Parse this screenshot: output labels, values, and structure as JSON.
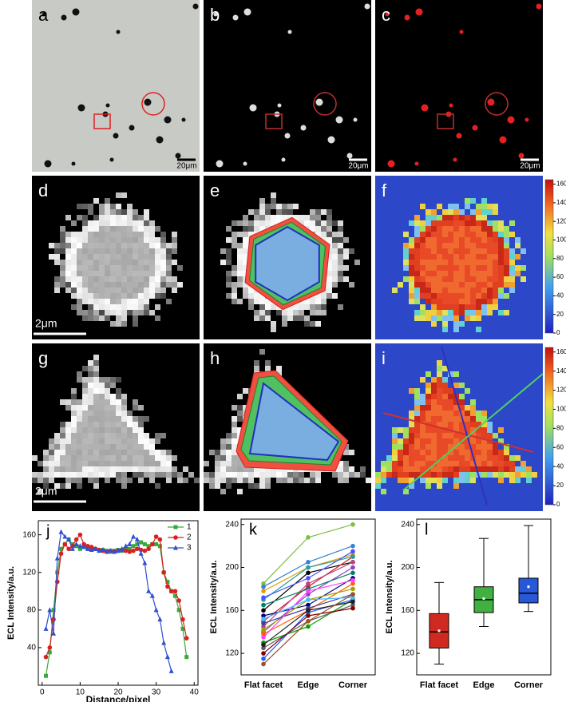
{
  "panels": {
    "a": {
      "label": "a",
      "scale_bar": "20μm"
    },
    "b": {
      "label": "b",
      "scale_bar": "20μm"
    },
    "c": {
      "label": "c",
      "scale_bar": "20μm"
    },
    "d": {
      "label": "d",
      "scale_bar": "2μm"
    },
    "e": {
      "label": "e"
    },
    "f": {
      "label": "f",
      "colorbar": {
        "ticks": [
          0,
          20,
          40,
          60,
          80,
          100,
          120,
          140,
          160
        ]
      }
    },
    "g": {
      "label": "g",
      "scale_bar": "2μm"
    },
    "h": {
      "label": "h"
    },
    "i": {
      "label": "i",
      "colorbar": {
        "ticks": [
          0,
          20,
          40,
          60,
          80,
          100,
          120,
          140,
          160
        ]
      }
    }
  },
  "chart_data": [
    {
      "type": "line",
      "panel_label": "j",
      "x_label": "Distance/pixel",
      "y_label": "ECL Intensity/a.u.",
      "x": [
        1,
        2,
        3,
        4,
        5,
        6,
        7,
        8,
        9,
        10,
        11,
        12,
        13,
        14,
        15,
        16,
        17,
        18,
        19,
        20,
        21,
        22,
        23,
        24,
        25,
        26,
        27,
        28,
        29,
        30,
        31,
        32,
        33,
        34,
        35,
        36,
        37,
        38
      ],
      "series": [
        {
          "name": "1",
          "color": "#3aa83a",
          "marker": "square",
          "values": [
            10,
            35,
            80,
            120,
            145,
            150,
            155,
            150,
            148,
            145,
            147,
            145,
            144,
            145,
            143,
            144,
            143,
            142,
            143,
            144,
            143,
            144,
            145,
            148,
            150,
            152,
            150,
            148,
            150,
            150,
            148,
            120,
            110,
            100,
            95,
            80,
            60,
            30
          ]
        },
        {
          "name": "2",
          "color": "#d82020",
          "marker": "circle",
          "values": [
            30,
            40,
            70,
            110,
            140,
            150,
            145,
            148,
            155,
            160,
            150,
            148,
            147,
            145,
            144,
            143,
            142,
            143,
            142,
            143,
            144,
            143,
            142,
            143,
            145,
            144,
            143,
            145,
            150,
            158,
            155,
            120,
            105,
            100,
            100,
            90,
            70,
            50
          ]
        },
        {
          "name": "3",
          "color": "#3050d0",
          "marker": "triangle",
          "values": [
            60,
            80,
            55,
            135,
            163,
            158,
            155,
            145,
            150,
            148,
            147,
            145,
            144,
            145,
            143,
            144,
            142,
            143,
            142,
            143,
            145,
            148,
            150,
            158,
            155,
            140,
            130,
            100,
            95,
            80,
            70,
            45,
            30,
            15,
            null,
            null,
            null,
            null
          ]
        }
      ],
      "xlim": [
        -1,
        41
      ],
      "xticks": [
        0,
        10,
        20,
        30,
        40
      ],
      "ylim": [
        0,
        175
      ],
      "yticks": [
        40,
        80,
        120,
        160
      ],
      "legend": "upper right"
    },
    {
      "type": "line",
      "panel_label": "k",
      "y_label": "ECL Intensity/a.u.",
      "categories": [
        "Flat facet",
        "Edge",
        "Corner"
      ],
      "series": [
        {
          "color": "#7fbf3f",
          "values": [
            185,
            228,
            240
          ]
        },
        {
          "color": "#3a7fd0",
          "values": [
            182,
            205,
            220
          ]
        },
        {
          "color": "#e0a000",
          "values": [
            178,
            200,
            212
          ]
        },
        {
          "color": "#000000",
          "values": [
            160,
            195,
            205
          ]
        },
        {
          "color": "#d02020",
          "values": [
            150,
            182,
            210
          ]
        },
        {
          "color": "#9040c0",
          "values": [
            140,
            175,
            200
          ]
        },
        {
          "color": "#20a0a0",
          "values": [
            170,
            200,
            210
          ]
        },
        {
          "color": "#000080",
          "values": [
            155,
            165,
            190
          ]
        },
        {
          "color": "#c04080",
          "values": [
            145,
            185,
            205
          ]
        },
        {
          "color": "#00a000",
          "values": [
            130,
            145,
            170
          ]
        },
        {
          "color": "#ff6000",
          "values": [
            138,
            160,
            185
          ]
        },
        {
          "color": "#606060",
          "values": [
            125,
            150,
            165
          ]
        },
        {
          "color": "#2060ff",
          "values": [
            115,
            158,
            170
          ]
        },
        {
          "color": "#a0a000",
          "values": [
            142,
            170,
            180
          ]
        },
        {
          "color": "#008060",
          "values": [
            165,
            180,
            195
          ]
        },
        {
          "color": "#800000",
          "values": [
            120,
            155,
            162
          ]
        },
        {
          "color": "#4040a0",
          "values": [
            148,
            162,
            175
          ]
        },
        {
          "color": "#ff40ff",
          "values": [
            135,
            178,
            188
          ]
        },
        {
          "color": "#202020",
          "values": [
            128,
            160,
            168
          ]
        },
        {
          "color": "#40c0ff",
          "values": [
            152,
            170,
            172
          ]
        },
        {
          "color": "#a05020",
          "values": [
            110,
            150,
            175
          ]
        },
        {
          "color": "#5050ff",
          "values": [
            172,
            190,
            215
          ]
        }
      ],
      "ylim": [
        100,
        245
      ],
      "yticks": [
        120,
        160,
        200,
        240
      ]
    },
    {
      "type": "box",
      "panel_label": "l",
      "y_label": "ECL Intensity/a.u.",
      "categories": [
        "Flat facet",
        "Edge",
        "Corner"
      ],
      "boxes": [
        {
          "color": "#d02a20",
          "whislo": 110,
          "q1": 125,
          "med": 140,
          "q3": 157,
          "whishi": 186,
          "mean": 141
        },
        {
          "color": "#40b040",
          "whislo": 145,
          "q1": 158,
          "med": 170,
          "q3": 182,
          "whishi": 227,
          "mean": 171
        },
        {
          "color": "#2858d8",
          "whislo": 159,
          "q1": 167,
          "med": 176,
          "q3": 190,
          "whishi": 239,
          "mean": 182
        }
      ],
      "ylim": [
        100,
        245
      ],
      "yticks": [
        120,
        160,
        200,
        240
      ]
    }
  ]
}
